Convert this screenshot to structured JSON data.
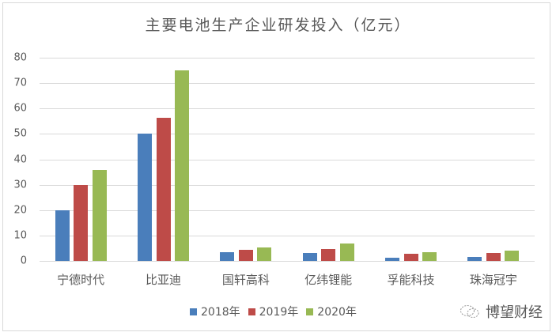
{
  "chart_data": {
    "type": "bar",
    "title": "主要电池生产企业研发投入（亿元）",
    "xlabel": "",
    "ylabel": "",
    "ylim": [
      0,
      80
    ],
    "yticks": [
      0,
      10,
      20,
      30,
      40,
      50,
      60,
      70,
      80
    ],
    "grid": true,
    "legend_position": "bottom",
    "categories": [
      "宁德时代",
      "比亚迪",
      "国轩高科",
      "亿纬锂能",
      "孚能科技",
      "珠海冠宇"
    ],
    "series": [
      {
        "name": "2018年",
        "color": "#4a7ebb",
        "values": [
          20.0,
          50.0,
          3.5,
          3.1,
          1.2,
          1.6
        ]
      },
      {
        "name": "2019年",
        "color": "#be4b48",
        "values": [
          29.9,
          56.3,
          4.4,
          4.8,
          2.7,
          3.2
        ]
      },
      {
        "name": "2020年",
        "color": "#98b954",
        "values": [
          35.7,
          74.9,
          5.2,
          6.9,
          3.4,
          4.0
        ]
      }
    ]
  },
  "title": "主要电池生产企业研发投入（亿元）",
  "yaxis": {
    "ticks": [
      "0",
      "10",
      "20",
      "30",
      "40",
      "50",
      "60",
      "70",
      "80"
    ]
  },
  "xaxis": {
    "labels": [
      "宁德时代",
      "比亚迪",
      "国轩高科",
      "亿纬锂能",
      "孚能科技",
      "珠海冠宇"
    ]
  },
  "legend": [
    {
      "label": "2018年",
      "color": "#4a7ebb"
    },
    {
      "label": "2019年",
      "color": "#be4b48"
    },
    {
      "label": "2020年",
      "color": "#98b954"
    }
  ],
  "watermark": {
    "icon": "wechat-icon",
    "text": "博望财经"
  }
}
